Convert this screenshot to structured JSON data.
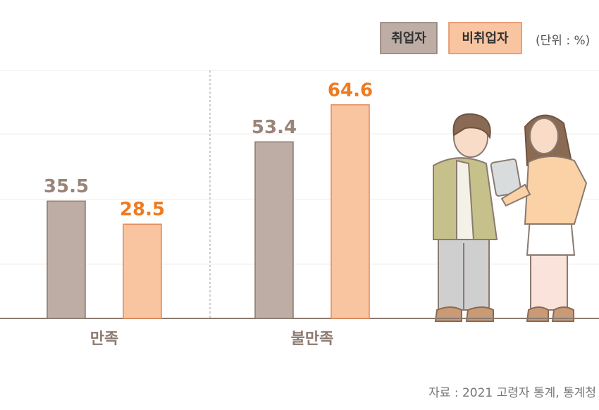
{
  "chart_data": {
    "type": "bar",
    "categories": [
      "만족",
      "불만족"
    ],
    "series": [
      {
        "name": "취업자",
        "color": "#bdada5",
        "stroke": "#8c7a70",
        "label_color": "#9a8478",
        "values": [
          35.5,
          53.4
        ]
      },
      {
        "name": "비취업자",
        "color": "#f9c5a1",
        "stroke": "#e3895a",
        "label_color": "#f07a1e",
        "values": [
          28.5,
          64.6
        ]
      }
    ],
    "ylim": [
      0,
      75
    ],
    "unit": "(단위 : %)",
    "source": "자료 : 2021 고령자 통계, 통계청"
  }
}
